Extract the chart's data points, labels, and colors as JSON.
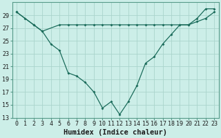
{
  "xlabel": "Humidex (Indice chaleur)",
  "x_labels": [
    "0",
    "1",
    "2",
    "3",
    "4",
    "5",
    "6",
    "7",
    "8",
    "9",
    "10",
    "11",
    "12",
    "13",
    "14",
    "15",
    "16",
    "17",
    "18",
    "19",
    "20",
    "21",
    "22",
    "23"
  ],
  "line1_x": [
    0,
    1,
    2,
    3,
    4,
    5,
    6,
    7,
    8,
    9,
    10,
    11,
    12,
    13,
    14,
    15,
    16,
    17,
    18,
    19,
    20,
    21,
    22,
    23
  ],
  "line1_y": [
    29.5,
    28.5,
    27.5,
    26.5,
    24.5,
    23.5,
    20.0,
    19.5,
    18.5,
    17.0,
    14.5,
    15.5,
    13.5,
    15.5,
    18.0,
    21.5,
    22.5,
    24.5,
    26.0,
    27.5,
    27.5,
    28.5,
    30.0,
    30.0
  ],
  "line2_x": [
    0,
    2,
    3,
    5,
    6,
    7,
    8,
    9,
    10,
    11,
    12,
    13,
    14,
    15,
    16,
    17,
    18,
    19,
    20,
    21,
    22,
    23
  ],
  "line2_y": [
    29.5,
    27.5,
    26.5,
    27.5,
    27.5,
    27.5,
    27.5,
    27.5,
    27.5,
    27.5,
    27.5,
    27.5,
    27.5,
    27.5,
    27.5,
    27.5,
    27.5,
    27.5,
    27.5,
    28.0,
    28.5,
    29.5
  ],
  "bg_color": "#cceee8",
  "line_color": "#1a6b5a",
  "grid_major_color": "#aad4cc",
  "grid_minor_color": "#c8e8e2",
  "ylim": [
    13,
    31
  ],
  "yticks": [
    13,
    15,
    17,
    19,
    21,
    23,
    25,
    27,
    29
  ],
  "tick_fontsize": 6,
  "label_fontsize": 7.5
}
